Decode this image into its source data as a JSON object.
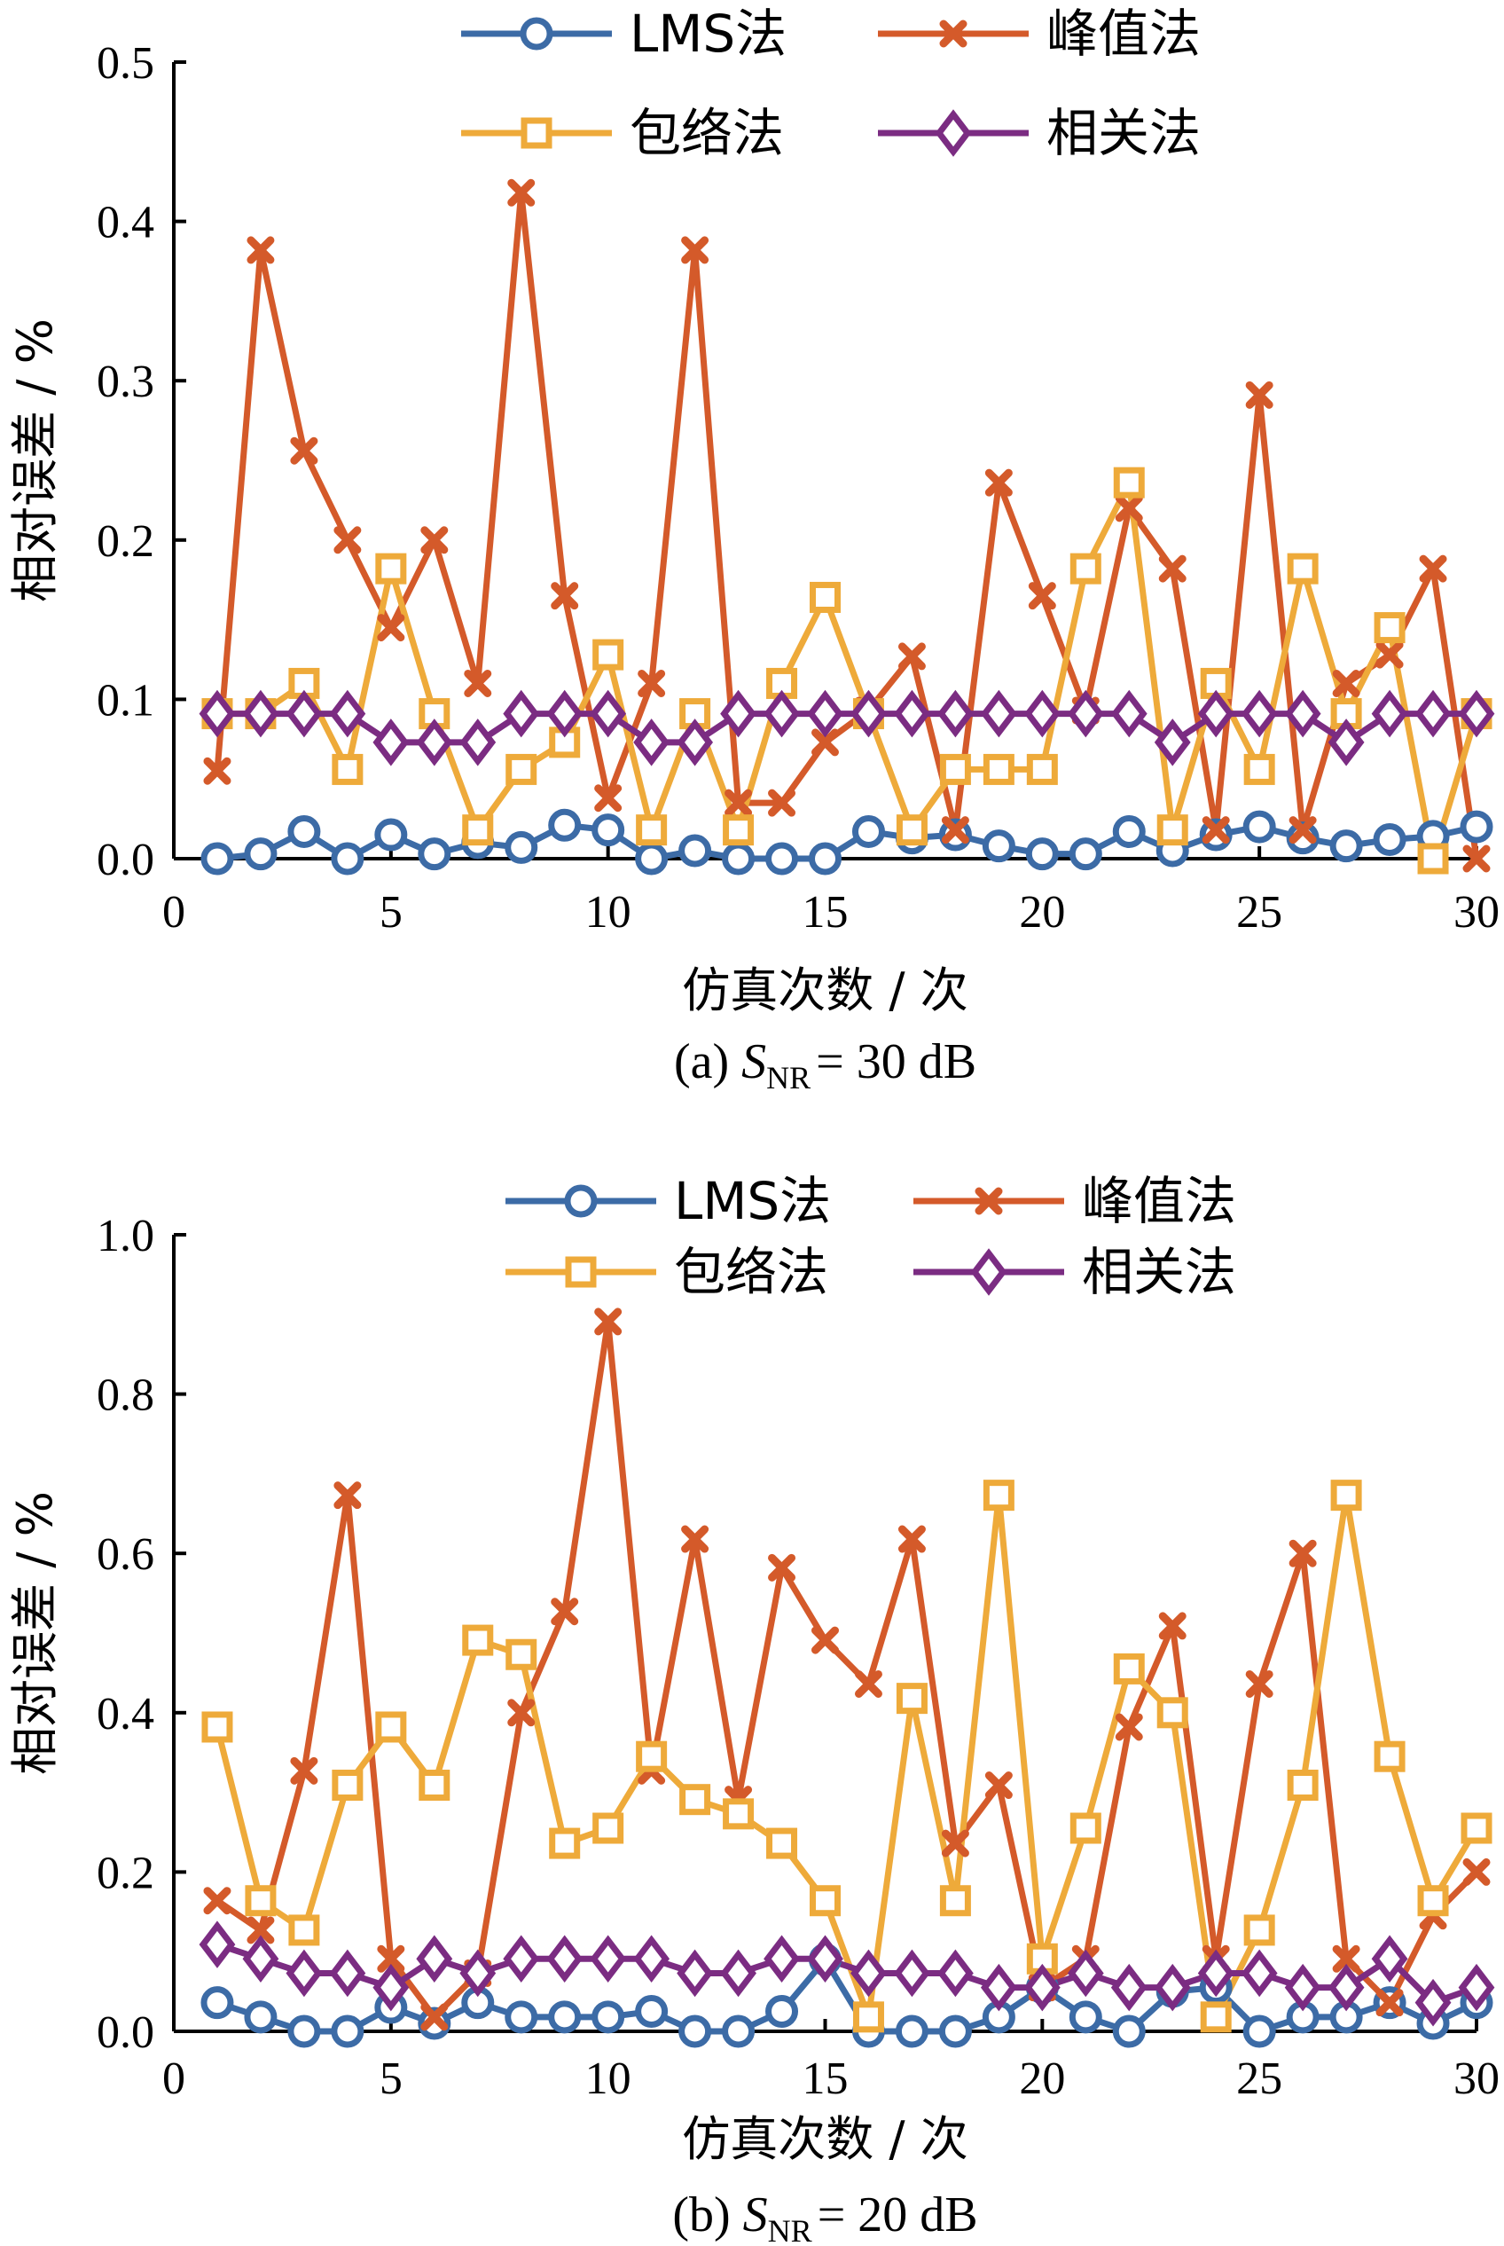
{
  "chart_data": [
    {
      "type": "line",
      "caption": {
        "prefix": "(a) ",
        "var": "S",
        "sub": "NR",
        "suffix": "= 30 dB"
      },
      "xlabel": "仿真次数 / 次",
      "ylabel": "相对误差 / %",
      "xlim": [
        0,
        30
      ],
      "ylim": [
        0,
        0.5
      ],
      "xticks": [
        0,
        5,
        10,
        15,
        20,
        25,
        30
      ],
      "yticks": [
        0.0,
        0.1,
        0.2,
        0.3,
        0.4,
        0.5
      ],
      "ytick_labels": [
        "0.0",
        "0.1",
        "0.2",
        "0.3",
        "0.4",
        "0.5"
      ],
      "legend_position": "top",
      "x": [
        1,
        2,
        3,
        4,
        5,
        6,
        7,
        8,
        9,
        10,
        11,
        12,
        13,
        14,
        15,
        16,
        17,
        18,
        19,
        20,
        21,
        22,
        23,
        24,
        25,
        26,
        27,
        28,
        29,
        30
      ],
      "series": [
        {
          "name": "LMS法",
          "color": "#3C6BA6",
          "marker": "circle",
          "values": [
            0.0,
            0.003,
            0.017,
            0.0,
            0.015,
            0.003,
            0.01,
            0.007,
            0.021,
            0.018,
            0.0,
            0.005,
            0.0,
            0.0,
            0.0,
            0.017,
            0.013,
            0.015,
            0.008,
            0.003,
            0.003,
            0.017,
            0.005,
            0.015,
            0.02,
            0.013,
            0.008,
            0.012,
            0.014,
            0.02
          ]
        },
        {
          "name": "峰值法",
          "color": "#D45A2A",
          "marker": "cross",
          "values": [
            0.055,
            0.382,
            0.256,
            0.2,
            0.145,
            0.2,
            0.11,
            0.418,
            0.165,
            0.038,
            0.11,
            0.382,
            0.035,
            0.035,
            0.073,
            0.093,
            0.127,
            0.018,
            0.236,
            0.165,
            0.093,
            0.22,
            0.182,
            0.018,
            0.291,
            0.018,
            0.11,
            0.128,
            0.182,
            0.0
          ]
        },
        {
          "name": "包络法",
          "color": "#EEAA3A",
          "marker": "square",
          "values": [
            0.091,
            0.091,
            0.11,
            0.056,
            0.182,
            0.091,
            0.018,
            0.056,
            0.073,
            0.128,
            0.018,
            0.091,
            0.018,
            0.11,
            0.164,
            0.091,
            0.018,
            0.056,
            0.056,
            0.056,
            0.182,
            0.236,
            0.018,
            0.11,
            0.056,
            0.182,
            0.091,
            0.145,
            0.0,
            0.091
          ]
        },
        {
          "name": "相关法",
          "color": "#7B2C82",
          "marker": "diamond",
          "values": [
            0.091,
            0.091,
            0.091,
            0.091,
            0.073,
            0.073,
            0.073,
            0.091,
            0.091,
            0.091,
            0.073,
            0.073,
            0.091,
            0.091,
            0.091,
            0.091,
            0.091,
            0.091,
            0.091,
            0.091,
            0.091,
            0.091,
            0.073,
            0.091,
            0.091,
            0.091,
            0.073,
            0.091,
            0.091,
            0.091
          ]
        }
      ]
    },
    {
      "type": "line",
      "caption": {
        "prefix": "(b) ",
        "var": "S",
        "sub": "NR",
        "suffix": "= 20 dB"
      },
      "xlabel": "仿真次数 / 次",
      "ylabel": "相对误差 / %",
      "xlim": [
        0,
        30
      ],
      "ylim": [
        0,
        1.0
      ],
      "xticks": [
        0,
        5,
        10,
        15,
        20,
        25,
        30
      ],
      "yticks": [
        0.0,
        0.2,
        0.4,
        0.6,
        0.8,
        1.0
      ],
      "ytick_labels": [
        "0.0",
        "0.2",
        "0.4",
        "0.6",
        "0.8",
        "1.0"
      ],
      "legend_position": "top",
      "x": [
        1,
        2,
        3,
        4,
        5,
        6,
        7,
        8,
        9,
        10,
        11,
        12,
        13,
        14,
        15,
        16,
        17,
        18,
        19,
        20,
        21,
        22,
        23,
        24,
        25,
        26,
        27,
        28,
        29,
        30
      ],
      "series": [
        {
          "name": "LMS法",
          "color": "#3C6BA6",
          "marker": "circle",
          "values": [
            0.036,
            0.018,
            0.0,
            0.0,
            0.03,
            0.01,
            0.036,
            0.018,
            0.018,
            0.018,
            0.025,
            0.0,
            0.0,
            0.025,
            0.09,
            0.0,
            0.0,
            0.0,
            0.018,
            0.055,
            0.018,
            0.0,
            0.05,
            0.055,
            0.0,
            0.018,
            0.018,
            0.036,
            0.01,
            0.036
          ]
        },
        {
          "name": "峰值法",
          "color": "#D45A2A",
          "marker": "cross",
          "values": [
            0.164,
            0.127,
            0.327,
            0.673,
            0.091,
            0.018,
            0.073,
            0.4,
            0.527,
            0.891,
            0.327,
            0.618,
            0.291,
            0.582,
            0.491,
            0.436,
            0.618,
            0.236,
            0.309,
            0.055,
            0.091,
            0.382,
            0.509,
            0.091,
            0.436,
            0.6,
            0.091,
            0.036,
            0.145,
            0.2
          ]
        },
        {
          "name": "包络法",
          "color": "#EEAA3A",
          "marker": "square",
          "values": [
            0.382,
            0.164,
            0.127,
            0.309,
            0.382,
            0.309,
            0.491,
            0.473,
            0.236,
            0.255,
            0.345,
            0.291,
            0.273,
            0.236,
            0.164,
            0.018,
            0.418,
            0.164,
            0.673,
            0.091,
            0.255,
            0.455,
            0.4,
            0.018,
            0.127,
            0.309,
            0.673,
            0.345,
            0.164,
            0.255
          ]
        },
        {
          "name": "相关法",
          "color": "#7B2C82",
          "marker": "diamond",
          "values": [
            0.109,
            0.091,
            0.073,
            0.073,
            0.055,
            0.091,
            0.073,
            0.091,
            0.091,
            0.091,
            0.091,
            0.073,
            0.073,
            0.091,
            0.091,
            0.073,
            0.073,
            0.073,
            0.055,
            0.055,
            0.073,
            0.055,
            0.055,
            0.073,
            0.073,
            0.055,
            0.055,
            0.091,
            0.036,
            0.055
          ]
        }
      ]
    }
  ]
}
